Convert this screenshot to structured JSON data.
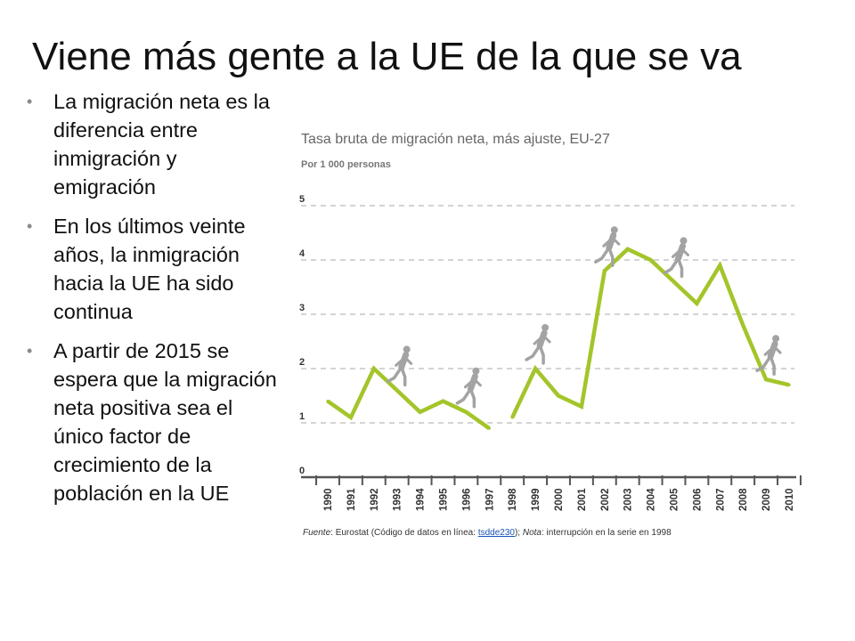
{
  "slide": {
    "title": "Viene más gente a la UE de la que se va",
    "bullets": [
      "La migración neta es la diferencia entre inmigración y emigración",
      "En los últimos veinte años, la inmigración hacia la UE ha sido continua",
      "A partir de 2015 se espera que la migración neta positiva sea el único factor de crecimiento de la población en la UE"
    ]
  },
  "chart_data": {
    "type": "line",
    "title": "Tasa bruta de migración neta, más ajuste, EU-27",
    "subtitle": "Por 1 000 personas",
    "x": [
      1990,
      1991,
      1992,
      1993,
      1994,
      1995,
      1996,
      1997,
      1998,
      1999,
      2000,
      2001,
      2002,
      2003,
      2004,
      2005,
      2006,
      2007,
      2008,
      2009,
      2010
    ],
    "x_labels": [
      "1990",
      "1991",
      "1992",
      "1993",
      "1994",
      "1995",
      "1996",
      "1997",
      "1998",
      "1999",
      "2000",
      "2001",
      "2002",
      "2003",
      "2004",
      "2005",
      "2006",
      "2007",
      "2008",
      "2009",
      "2010"
    ],
    "series": [
      {
        "name": "Tasa bruta de migración neta",
        "segments": [
          {
            "x": [
              1990,
              1991,
              1992,
              1993,
              1994,
              1995,
              1996,
              1997
            ],
            "values": [
              1.4,
              1.1,
              2.0,
              1.6,
              1.2,
              1.4,
              1.2,
              0.9
            ]
          },
          {
            "x": [
              1998,
              1999,
              2000,
              2001,
              2002,
              2003,
              2004,
              2005,
              2006,
              2007,
              2008,
              2009,
              2010
            ],
            "values": [
              1.1,
              2.0,
              1.5,
              1.3,
              3.8,
              4.2,
              4.0,
              3.6,
              3.2,
              3.9,
              2.8,
              1.8,
              1.7
            ]
          }
        ]
      }
    ],
    "ylim": [
      0,
      5
    ],
    "yticks": [
      "0",
      "1",
      "2",
      "3",
      "4",
      "5"
    ],
    "grid": true,
    "line_color": "#a3c52a",
    "grid_color": "#bbbbbb",
    "figure_color": "#a3a3a3",
    "figure_years": [
      1993,
      1996,
      1999,
      2002,
      2005,
      2009
    ],
    "footnote": {
      "source_label": "Fuente",
      "source_text": ": Eurostat (Código de datos en línea: ",
      "code": "tsdde230",
      "mid": "); ",
      "note_label": "Nota",
      "note_text": ": interrupción en la serie en 1998"
    }
  }
}
